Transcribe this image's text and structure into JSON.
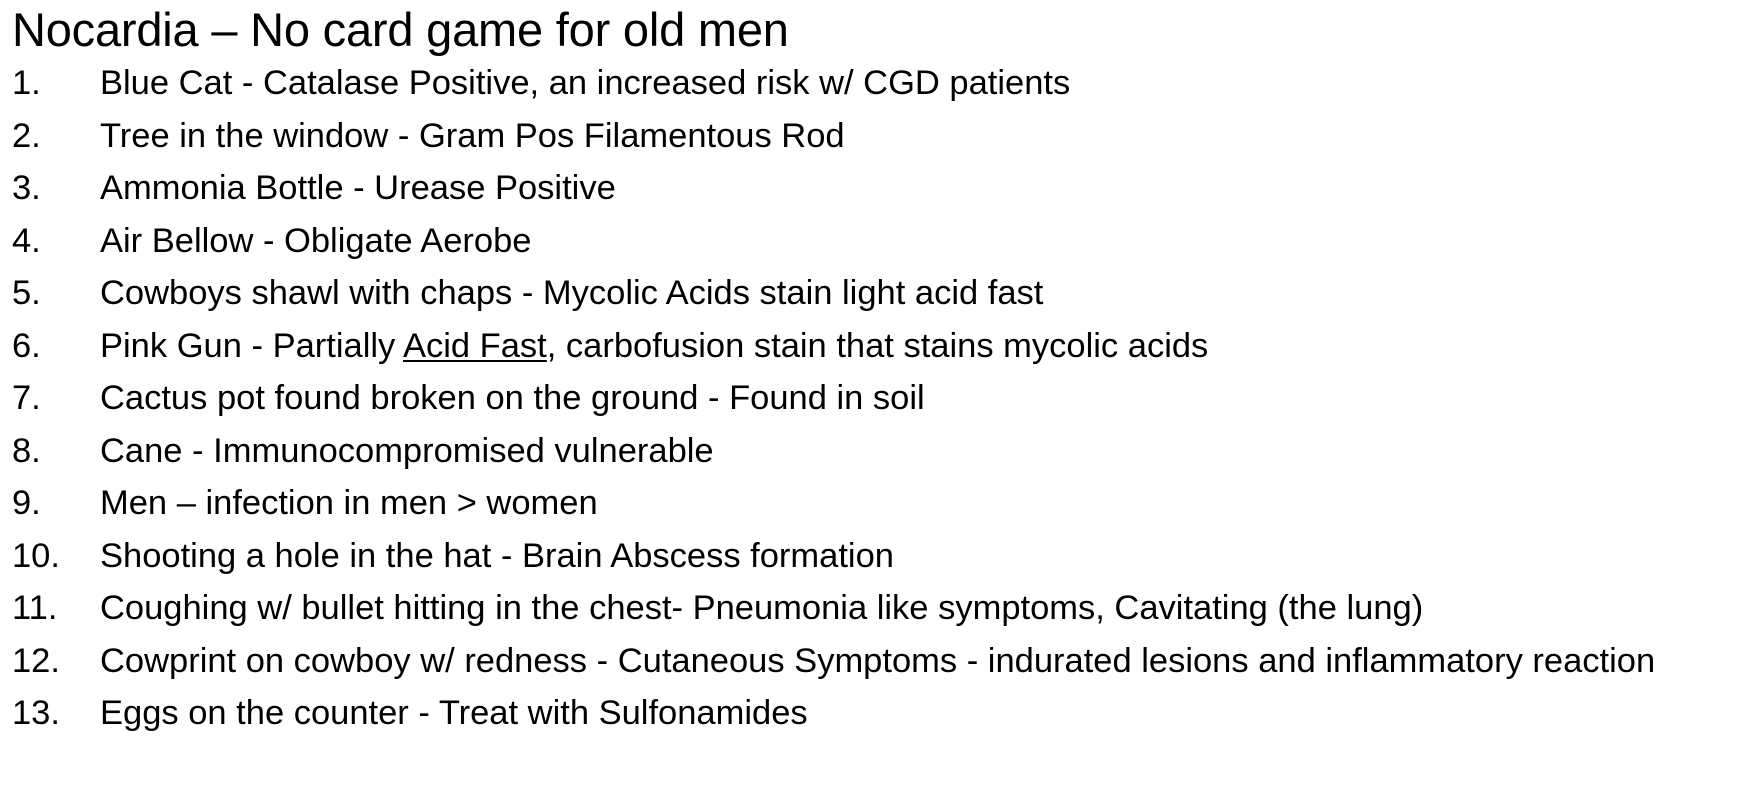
{
  "document": {
    "title": "Nocardia – No card game for old men",
    "items": [
      {
        "num": "1.",
        "text": "Blue Cat - Catalase Positive, an increased risk w/ CGD patients"
      },
      {
        "num": "2.",
        "text": "Tree in the window - Gram Pos Filamentous Rod"
      },
      {
        "num": "3.",
        "text": "Ammonia Bottle - Urease Positive"
      },
      {
        "num": "4.",
        "text": "Air Bellow - Obligate Aerobe"
      },
      {
        "num": "5.",
        "text": "Cowboys shawl with chaps - Mycolic Acids stain light acid fast"
      },
      {
        "num": "6.",
        "pre": "Pink Gun - Partially ",
        "underlined": "Acid Fast",
        "post": ", carbofusion stain that stains mycolic acids"
      },
      {
        "num": "7.",
        "text": "Cactus pot found broken on the ground - Found in soil"
      },
      {
        "num": "8.",
        "text": "Cane - Immunocompromised vulnerable"
      },
      {
        "num": "9.",
        "text": "Men – infection in men > women"
      },
      {
        "num": "10.",
        "text": "Shooting a hole in the hat - Brain Abscess formation"
      },
      {
        "num": "11.",
        "text": "Coughing w/ bullet hitting in the chest- Pneumonia like symptoms, Cavitating (the lung)"
      },
      {
        "num": "12.",
        "text": "Cowprint on cowboy w/ redness - Cutaneous Symptoms - indurated lesions and  inflammatory reaction"
      },
      {
        "num": "13.",
        "text": "Eggs on the counter - Treat with Sulfonamides"
      }
    ]
  }
}
